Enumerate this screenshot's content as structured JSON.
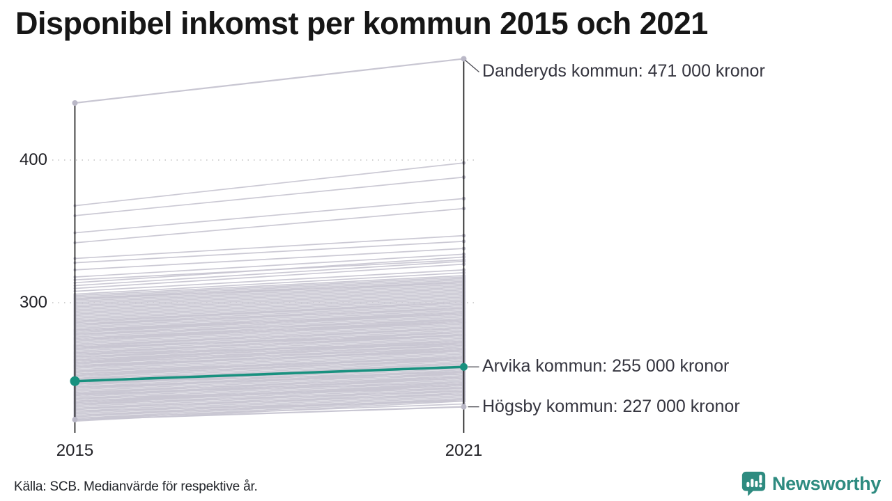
{
  "title": "Disponibel inkomst per kommun 2015 och 2021",
  "footer": {
    "source": "Källa: SCB. Medianvärde för respektive år."
  },
  "logo": {
    "text": "Newsworthy",
    "color": "#2e8b80",
    "icon": "chart-speech-bubble-icon"
  },
  "colors": {
    "accent_teal": "#18917f",
    "background_line": "#c8c6d2",
    "background_dot": "#bab8c7",
    "axis": "#111111",
    "grid": "#d2d2d2",
    "annotation_text": "#35353f",
    "connector": "#4a4a52"
  },
  "chart_data": {
    "type": "line",
    "subtype": "slope",
    "x": [
      2015,
      2021
    ],
    "x_labels": [
      "2015",
      "2021"
    ],
    "y_tick_labels": [
      "400",
      "300"
    ],
    "y_tick_values": [
      400,
      300
    ],
    "y_unit": "tusen kronor (1000 kronor)",
    "ylim": [
      210,
      480
    ],
    "grid": "dotted-horizontal",
    "legend_position": "none",
    "annotations": [
      {
        "name": "Danderyds kommun",
        "label": "Danderyds kommun: 471 000 kronor",
        "values": [
          440,
          471
        ],
        "highlighted": false
      },
      {
        "name": "Arvika kommun",
        "label": "Arvika kommun: 255 000 kronor",
        "values": [
          245,
          255
        ],
        "highlighted": true
      },
      {
        "name": "Högsby kommun",
        "label": "Högsby kommun: 227 000 kronor",
        "values": [
          218,
          227
        ],
        "highlighted": false
      }
    ],
    "background_series": {
      "description": "remaining municipalities, values in thousand kronor [2015, 2021]",
      "pairs": [
        [
          368,
          398
        ],
        [
          361,
          388
        ],
        [
          349,
          373
        ],
        [
          342,
          366
        ],
        [
          331,
          347
        ],
        [
          328,
          343
        ],
        [
          323,
          338
        ],
        [
          318,
          334
        ],
        [
          316,
          330
        ],
        [
          314,
          332
        ],
        [
          312,
          329
        ],
        [
          310,
          327
        ],
        [
          308,
          323
        ],
        [
          306,
          321
        ],
        [
          305,
          319
        ],
        [
          304,
          318
        ],
        [
          303,
          317
        ],
        [
          302,
          316
        ],
        [
          301,
          315
        ],
        [
          300,
          314
        ],
        [
          299,
          313
        ],
        [
          298,
          312
        ],
        [
          297,
          311
        ],
        [
          296,
          310
        ],
        [
          295,
          309
        ],
        [
          294,
          308
        ],
        [
          293,
          307
        ],
        [
          292,
          306
        ],
        [
          291,
          305
        ],
        [
          290,
          304
        ],
        [
          289,
          303
        ],
        [
          288,
          302
        ],
        [
          287,
          301
        ],
        [
          286,
          300
        ],
        [
          285,
          299
        ],
        [
          284,
          298
        ],
        [
          283,
          297
        ],
        [
          282,
          296
        ],
        [
          281,
          295
        ],
        [
          280,
          294
        ],
        [
          280,
          292
        ],
        [
          279,
          293
        ],
        [
          278,
          292
        ],
        [
          277,
          291
        ],
        [
          276,
          290
        ],
        [
          275,
          289
        ],
        [
          275,
          287
        ],
        [
          274,
          288
        ],
        [
          273,
          287
        ],
        [
          272,
          286
        ],
        [
          271,
          285
        ],
        [
          270,
          284
        ],
        [
          270,
          282
        ],
        [
          269,
          283
        ],
        [
          268,
          282
        ],
        [
          267,
          281
        ],
        [
          266,
          280
        ],
        [
          265,
          279
        ],
        [
          265,
          277
        ],
        [
          264,
          278
        ],
        [
          263,
          277
        ],
        [
          262,
          276
        ],
        [
          261,
          275
        ],
        [
          260,
          274
        ],
        [
          260,
          272
        ],
        [
          259,
          273
        ],
        [
          258,
          272
        ],
        [
          257,
          271
        ],
        [
          256,
          270
        ],
        [
          255,
          269
        ],
        [
          255,
          267
        ],
        [
          254,
          268
        ],
        [
          253,
          267
        ],
        [
          252,
          266
        ],
        [
          251,
          265
        ],
        [
          250,
          264
        ],
        [
          250,
          262
        ],
        [
          249,
          263
        ],
        [
          248,
          262
        ],
        [
          247,
          261
        ],
        [
          246,
          260
        ],
        [
          245,
          259
        ],
        [
          245,
          257
        ],
        [
          244,
          258
        ],
        [
          243,
          257
        ],
        [
          242,
          256
        ],
        [
          241,
          255
        ],
        [
          240,
          254
        ],
        [
          240,
          252
        ],
        [
          239,
          253
        ],
        [
          238,
          252
        ],
        [
          237,
          251
        ],
        [
          236,
          250
        ],
        [
          235,
          249
        ],
        [
          235,
          247
        ],
        [
          234,
          248
        ],
        [
          233,
          247
        ],
        [
          232,
          246
        ],
        [
          231,
          245
        ],
        [
          230,
          244
        ],
        [
          230,
          242
        ],
        [
          229,
          243
        ],
        [
          228,
          242
        ],
        [
          227,
          241
        ],
        [
          226,
          240
        ],
        [
          225,
          239
        ],
        [
          224,
          238
        ],
        [
          223,
          237
        ],
        [
          222,
          236
        ],
        [
          221,
          235
        ],
        [
          220,
          234
        ],
        [
          219,
          233
        ],
        [
          218,
          232
        ],
        [
          217,
          231
        ],
        [
          219,
          229
        ],
        [
          221,
          232
        ],
        [
          226,
          236
        ],
        [
          231,
          243
        ],
        [
          237,
          248
        ],
        [
          243,
          255
        ],
        [
          249,
          260
        ],
        [
          256,
          266
        ],
        [
          262,
          273
        ],
        [
          268,
          279
        ],
        [
          274,
          286
        ],
        [
          281,
          293
        ],
        [
          287,
          300
        ],
        [
          252,
          261
        ],
        [
          247,
          254
        ],
        [
          241,
          250
        ],
        [
          236,
          244
        ],
        [
          258,
          268
        ],
        [
          264,
          271
        ],
        [
          278,
          288
        ],
        [
          233,
          240
        ],
        [
          244,
          251
        ],
        [
          269,
          277
        ],
        [
          229,
          238
        ],
        [
          224,
          231
        ],
        [
          259,
          270
        ],
        [
          285,
          296
        ],
        [
          303,
          314
        ]
      ]
    }
  }
}
